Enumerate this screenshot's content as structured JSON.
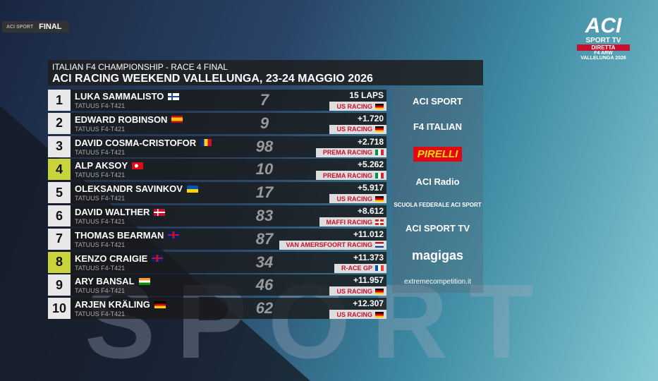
{
  "badge": {
    "brand": "ACI SPORT",
    "label": "FINAL"
  },
  "channel": {
    "logo": "ACI",
    "name": "SPORT TV",
    "status": "DIRETTA",
    "event": "F4 ARW",
    "venue": "VALLELUNGA 2026"
  },
  "header": {
    "subtitle": "ITALIAN F4 CHAMPIONSHIP - RACE 4 FINAL",
    "title": "ACI RACING WEEKEND VALLELUNGA, 23-24 MAGGIO 2026"
  },
  "results": [
    {
      "position": "1",
      "driver": "LUKA SAMMALISTO",
      "car": "TATUUS F4-T421",
      "number": "7",
      "gap": "15 LAPS",
      "team": "US RACING"
    },
    {
      "position": "2",
      "driver": "EDWARD ROBINSON",
      "car": "TATUUS F4-T421",
      "number": "9",
      "gap": "+1.720",
      "team": "US RACING"
    },
    {
      "position": "3",
      "driver": "DAVID COSMA-CRISTOFOR",
      "car": "TATUUS F4-T421",
      "number": "98",
      "gap": "+2.718",
      "team": "PREMA RACING"
    },
    {
      "position": "4",
      "driver": "ALP AKSOY",
      "car": "TATUUS F4-T421",
      "number": "10",
      "gap": "+5.262",
      "team": "PREMA RACING"
    },
    {
      "position": "5",
      "driver": "OLEKSANDR SAVINKOV",
      "car": "TATUUS F4-T421",
      "number": "17",
      "gap": "+5.917",
      "team": "US RACING"
    },
    {
      "position": "6",
      "driver": "DAVID WALTHER",
      "car": "TATUUS F4-T421",
      "number": "83",
      "gap": "+8.612",
      "team": "MAFFI RACING"
    },
    {
      "position": "7",
      "driver": "THOMAS BEARMAN",
      "car": "TATUUS F4-T421",
      "number": "87",
      "gap": "+11.012",
      "team": "VAN AMERSFOORT RACING"
    },
    {
      "position": "8",
      "driver": "KENZO CRAIGIE",
      "car": "TATUUS F4-T421",
      "number": "34",
      "gap": "+11.373",
      "team": "R-ACE GP"
    },
    {
      "position": "9",
      "driver": "ARY BANSAL",
      "car": "TATUUS F4-T421",
      "number": "46",
      "gap": "+11.957",
      "team": "US RACING"
    },
    {
      "position": "10",
      "driver": "ARJEN KRÄLING",
      "car": "TATUUS F4-T421",
      "number": "62",
      "gap": "+12.307",
      "team": "US RACING"
    }
  ],
  "sponsors": [
    "ACI SPORT",
    "F4 ITALIAN",
    "PIRELLI",
    "ACI Radio",
    "SCUOLA FEDERALE ACI SPORT",
    "ACI SPORT TV",
    "magigas",
    "extremecompetition.it"
  ],
  "watermark": "SPORT"
}
